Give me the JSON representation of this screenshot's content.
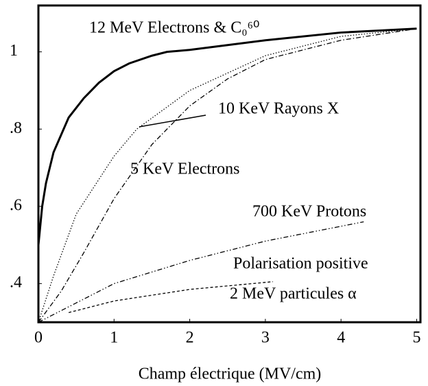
{
  "chart_data": {
    "type": "line",
    "xlabel": "Champ électrique (MV/cm)",
    "xlim": [
      0,
      5.05
    ],
    "xticks": [
      0,
      1,
      2,
      3,
      4,
      5
    ],
    "ylim": [
      0.3,
      1.12
    ],
    "yticks": [
      {
        "value": 0.4,
        "label": ".4"
      },
      {
        "value": 0.6,
        "label": ".6"
      },
      {
        "value": 0.8,
        "label": ".8"
      },
      1
    ],
    "annotations": [
      "Polarisation positive"
    ],
    "series": [
      {
        "name": "12 MeV Electrons & C₀⁶⁰",
        "color": "#000000",
        "style": "solid",
        "x": [
          0,
          0.05,
          0.1,
          0.2,
          0.4,
          0.6,
          0.8,
          1,
          1.2,
          1.5,
          1.7,
          2,
          3,
          4,
          5
        ],
        "values": [
          0.5,
          0.6,
          0.66,
          0.74,
          0.83,
          0.88,
          0.92,
          0.95,
          0.97,
          0.99,
          1.0,
          1.005,
          1.03,
          1.05,
          1.06
        ]
      },
      {
        "name": "10 KeV Rayons X",
        "color": "#000000",
        "style": "dotted",
        "x": [
          0,
          0.2,
          0.5,
          1,
          1.3,
          2,
          3,
          4,
          5
        ],
        "values": [
          0.3,
          0.42,
          0.58,
          0.73,
          0.8,
          0.9,
          0.99,
          1.04,
          1.06
        ]
      },
      {
        "name": "5 KeV Electrons",
        "color": "#000000",
        "style": "dashdot",
        "x": [
          0,
          0.3,
          0.6,
          1,
          1.5,
          2,
          2.5,
          3,
          4,
          5
        ],
        "values": [
          0.3,
          0.38,
          0.48,
          0.62,
          0.76,
          0.86,
          0.93,
          0.98,
          1.03,
          1.06
        ]
      },
      {
        "name": "700 KeV Protons",
        "color": "#000000",
        "style": "dashdotdot",
        "x": [
          0,
          0.5,
          1,
          2,
          3,
          4.3
        ],
        "values": [
          0.3,
          0.35,
          0.4,
          0.46,
          0.51,
          0.56
        ]
      },
      {
        "name": "2 MeV particules α",
        "color": "#000000",
        "style": "dashed",
        "x": [
          0.4,
          1,
          2,
          3.1
        ],
        "values": [
          0.325,
          0.355,
          0.385,
          0.405
        ]
      }
    ]
  }
}
